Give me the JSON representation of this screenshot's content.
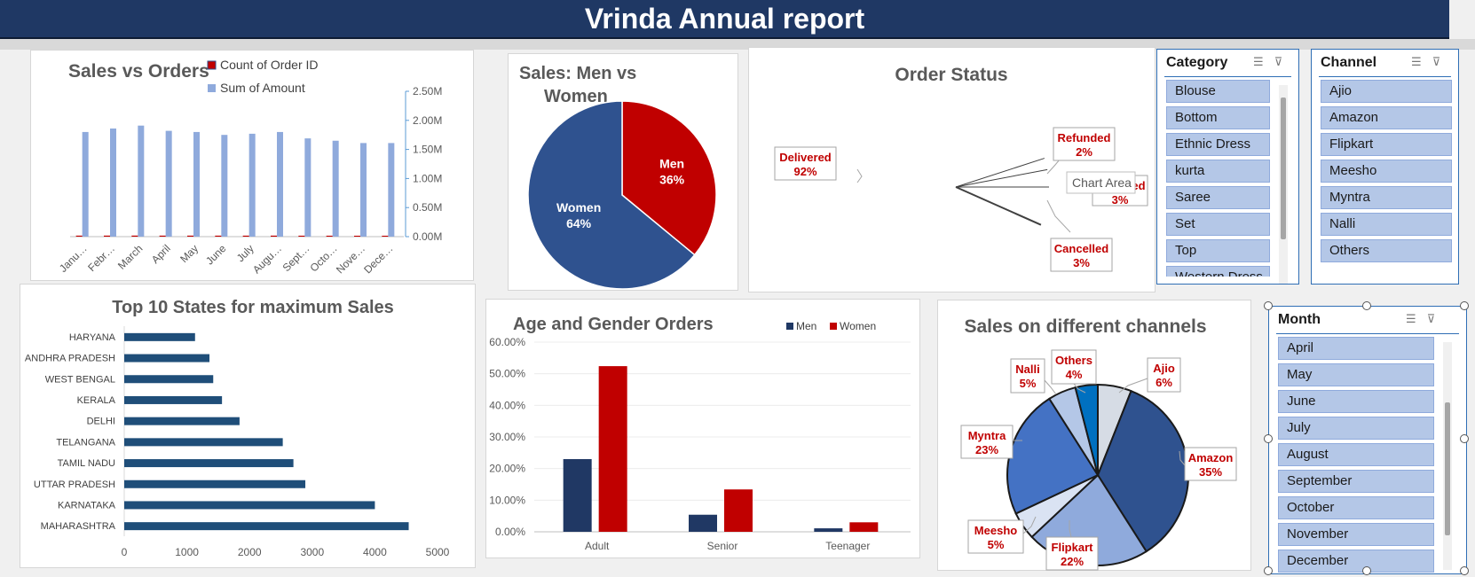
{
  "header": {
    "title": "Vrinda Annual report"
  },
  "tooltip": {
    "text": "Chart Area"
  },
  "slicers": {
    "category": {
      "title": "Category",
      "items": [
        "Blouse",
        "Bottom",
        "Ethnic Dress",
        "kurta",
        "Saree",
        "Set",
        "Top",
        "Western Dress"
      ]
    },
    "channel": {
      "title": "Channel",
      "items": [
        "Ajio",
        "Amazon",
        "Flipkart",
        "Meesho",
        "Myntra",
        "Nalli",
        "Others"
      ]
    },
    "month": {
      "title": "Month",
      "items": [
        "April",
        "May",
        "June",
        "July",
        "August",
        "September",
        "October",
        "November",
        "December"
      ]
    }
  },
  "icons": {
    "multiselect": "multi-select-icon",
    "clearfilter": "clear-filter-icon"
  },
  "colors": {
    "navy": "#1f3864",
    "dark_blue": "#2f528f",
    "red": "#c00000",
    "bar_blue": "#1f4e79",
    "light_blue": "#8faadc",
    "pale_blue": "#dae3f3",
    "slicer_item": "#b4c7e7"
  },
  "chart_data": [
    {
      "id": "sales_vs_orders",
      "type": "bar",
      "title": "Sales vs Orders",
      "categories": [
        "January",
        "February",
        "March",
        "April",
        "May",
        "June",
        "July",
        "August",
        "September",
        "October",
        "November",
        "December"
      ],
      "series": [
        {
          "name": "Count of Order ID",
          "values": [
            2600,
            2650,
            2700,
            2600,
            2600,
            2550,
            2550,
            2600,
            2450,
            2400,
            2350,
            2350
          ],
          "color": "#c00000"
        },
        {
          "name": "Sum of Amount",
          "values": [
            1800000,
            1860000,
            1910000,
            1820000,
            1800000,
            1750000,
            1770000,
            1800000,
            1690000,
            1650000,
            1610000,
            1610000
          ],
          "color": "#8faadc"
        }
      ],
      "y2ticks": [
        "0.00M",
        "0.50M",
        "1.00M",
        "1.50M",
        "2.00M",
        "2.50M"
      ],
      "y2lim": [
        0,
        2500000
      ],
      "legend": "top"
    },
    {
      "id": "sales_men_women",
      "type": "pie",
      "title": "Sales: Men vs Women",
      "slices": [
        {
          "name": "Men",
          "value": 36,
          "label": "36%",
          "color": "#c00000"
        },
        {
          "name": "Women",
          "value": 64,
          "label": "64%",
          "color": "#2f528f"
        }
      ]
    },
    {
      "id": "order_status",
      "type": "pie",
      "title": "Order Status",
      "slices": [
        {
          "name": "Delivered",
          "value": 92,
          "label": "92%",
          "color": "#dae3f3"
        },
        {
          "name": "Refunded",
          "value": 2,
          "label": "2%",
          "color": "#0070c0"
        },
        {
          "name": "Returned",
          "value": 3,
          "label": "3%",
          "color": "#9dc3e6"
        },
        {
          "name": "Cancelled",
          "value": 3,
          "label": "3%",
          "color": "#44546a"
        }
      ]
    },
    {
      "id": "top_states",
      "type": "bar",
      "orientation": "horizontal",
      "title": "Top 10 States for maximum Sales",
      "categories": [
        "HARYANA",
        "ANDHRA PRADESH",
        "WEST BENGAL",
        "KERALA",
        "DELHI",
        "TELANGANA",
        "TAMIL NADU",
        "UTTAR PRADESH",
        "KARNATAKA",
        "MAHARASHTRA"
      ],
      "values": [
        1130,
        1360,
        1420,
        1560,
        1840,
        2530,
        2700,
        2890,
        4000,
        4540
      ],
      "xticks": [
        "0",
        "1000",
        "2000",
        "3000",
        "4000",
        "5000"
      ],
      "xlim": [
        0,
        5000
      ],
      "color": "#1f4e79"
    },
    {
      "id": "age_gender",
      "type": "bar",
      "title": "Age and Gender Orders",
      "categories": [
        "Adult",
        "Senior",
        "Teenager"
      ],
      "series": [
        {
          "name": "Men",
          "values": [
            23.0,
            5.4,
            1.1
          ],
          "color": "#203864"
        },
        {
          "name": "Women",
          "values": [
            52.4,
            13.4,
            3.0
          ],
          "color": "#c00000"
        }
      ],
      "yticks": [
        "0.00%",
        "10.00%",
        "20.00%",
        "30.00%",
        "40.00%",
        "50.00%",
        "60.00%"
      ],
      "ylim": [
        0,
        60
      ],
      "legend": "top-right"
    },
    {
      "id": "channels",
      "type": "pie",
      "title": "Sales on different channels",
      "slices": [
        {
          "name": "Ajio",
          "value": 6,
          "label": "6%",
          "color": "#d6dce5"
        },
        {
          "name": "Amazon",
          "value": 35,
          "label": "35%",
          "color": "#2f528f"
        },
        {
          "name": "Flipkart",
          "value": 22,
          "label": "22%",
          "color": "#8faadc"
        },
        {
          "name": "Meesho",
          "value": 5,
          "label": "5%",
          "color": "#dae3f3"
        },
        {
          "name": "Myntra",
          "value": 23,
          "label": "23%",
          "color": "#4472c4"
        },
        {
          "name": "Nalli",
          "value": 5,
          "label": "5%",
          "color": "#b4c7e7"
        },
        {
          "name": "Others",
          "value": 4,
          "label": "4%",
          "color": "#0070c0"
        }
      ]
    }
  ]
}
